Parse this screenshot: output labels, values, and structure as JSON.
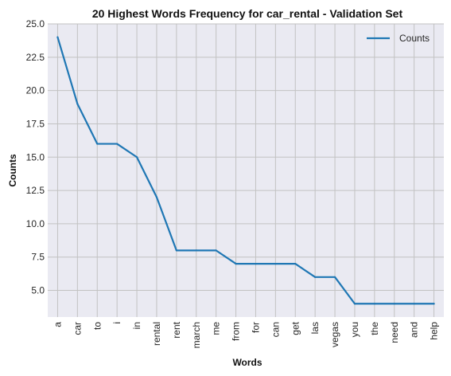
{
  "chart_data": {
    "type": "line",
    "title": "20 Highest Words Frequency for car_rental - Validation Set",
    "xlabel": "Words",
    "ylabel": "Counts",
    "categories": [
      "a",
      "car",
      "to",
      "i",
      "in",
      "rental",
      "rent",
      "march",
      "me",
      "from",
      "for",
      "can",
      "get",
      "las",
      "vegas",
      "you",
      "the",
      "need",
      "and",
      "help"
    ],
    "series": [
      {
        "name": "Counts",
        "values": [
          24,
          19,
          16,
          16,
          15,
          12,
          8,
          8,
          8,
          7,
          7,
          7,
          7,
          6,
          6,
          4,
          4,
          4,
          4,
          4
        ]
      }
    ],
    "ylim": [
      3,
      25
    ],
    "yticks": [
      5.0,
      7.5,
      10.0,
      12.5,
      15.0,
      17.5,
      20.0,
      22.5,
      25.0
    ],
    "ytick_labels": [
      "5.0",
      "7.5",
      "10.0",
      "12.5",
      "15.0",
      "17.5",
      "20.0",
      "22.5",
      "25.0"
    ],
    "grid": true,
    "legend_position": "top-right",
    "colors": {
      "series": "#1f77b4",
      "plot_background": "#eaeaf2",
      "grid": "#c2c2c2"
    }
  }
}
